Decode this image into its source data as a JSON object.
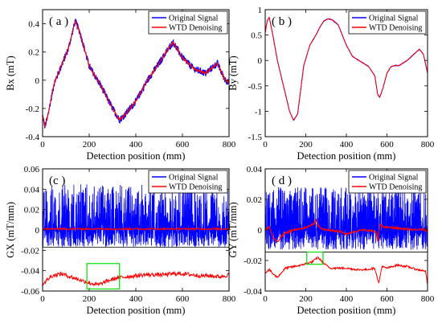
{
  "legend": {
    "series1": "Original Signal",
    "series2": "WTD Denoising"
  },
  "colors": {
    "original": "#0000ff",
    "denoised": "#ff0000",
    "highlight": "#00dd00"
  },
  "chart_data": [
    {
      "panel": "( a )",
      "type": "line",
      "xlabel": "Detection position (mm)",
      "ylabel": "Bx (mT)",
      "xlim": [
        0,
        800
      ],
      "ylim": [
        -0.4,
        0.5
      ],
      "xticks": [
        "0",
        "200",
        "400",
        "600",
        "800"
      ],
      "yticks": [
        "-0.4",
        "-0.2",
        "0",
        "0.2",
        "0.4"
      ],
      "legend_position": "top-right",
      "noise_amplitude": 0.05,
      "series": [
        {
          "name": "Original Signal",
          "x": [
            0,
            10,
            20,
            50,
            80,
            110,
            140,
            160,
            200,
            250,
            300,
            330,
            350,
            400,
            450,
            500,
            530,
            560,
            600,
            650,
            700,
            750,
            780,
            800
          ],
          "y": [
            -0.25,
            -0.33,
            -0.27,
            -0.02,
            0.1,
            0.22,
            0.42,
            0.34,
            0.1,
            -0.04,
            -0.2,
            -0.28,
            -0.25,
            -0.15,
            0.0,
            0.12,
            0.2,
            0.27,
            0.16,
            0.08,
            0.05,
            0.12,
            0.01,
            -0.02
          ]
        },
        {
          "name": "WTD Denoising",
          "x": [
            0,
            10,
            20,
            50,
            80,
            110,
            140,
            160,
            200,
            250,
            300,
            330,
            350,
            400,
            450,
            500,
            530,
            560,
            600,
            650,
            700,
            750,
            780,
            800
          ],
          "y": [
            -0.25,
            -0.33,
            -0.27,
            -0.02,
            0.1,
            0.22,
            0.42,
            0.34,
            0.1,
            -0.04,
            -0.2,
            -0.28,
            -0.25,
            -0.15,
            0.0,
            0.12,
            0.2,
            0.27,
            0.16,
            0.08,
            0.05,
            0.12,
            0.01,
            -0.02
          ]
        }
      ]
    },
    {
      "panel": "( b )",
      "type": "line",
      "xlabel": "Detection position (mm)",
      "ylabel": "By (mT)",
      "xlim": [
        0,
        800
      ],
      "ylim": [
        -1.5,
        1
      ],
      "xticks": [
        "0",
        "200",
        "400",
        "600",
        "800"
      ],
      "yticks": [
        "-1.5",
        "-1",
        "-0.5",
        "0",
        "0.5",
        "1"
      ],
      "legend_position": "top-right",
      "noise_amplitude": 0.01,
      "series": [
        {
          "name": "Original Signal",
          "x": [
            0,
            10,
            20,
            40,
            60,
            90,
            120,
            140,
            160,
            190,
            220,
            250,
            270,
            290,
            310,
            330,
            360,
            400,
            430,
            470,
            510,
            540,
            555,
            565,
            580,
            600,
            620,
            640,
            660,
            700,
            740,
            760,
            780,
            800
          ],
          "y": [
            0.55,
            0.78,
            0.85,
            0.45,
            0.0,
            -0.5,
            -1.0,
            -1.18,
            -1.05,
            -0.1,
            0.3,
            0.5,
            0.66,
            0.78,
            0.82,
            0.8,
            0.7,
            0.3,
            0.08,
            -0.02,
            -0.12,
            -0.3,
            -0.68,
            -0.72,
            -0.55,
            -0.25,
            -0.12,
            -0.1,
            -0.1,
            0.0,
            0.15,
            0.22,
            0.12,
            -0.25
          ]
        },
        {
          "name": "WTD Denoising",
          "x": [
            0,
            10,
            20,
            40,
            60,
            90,
            120,
            140,
            160,
            190,
            220,
            250,
            270,
            290,
            310,
            330,
            360,
            400,
            430,
            470,
            510,
            540,
            555,
            565,
            580,
            600,
            620,
            640,
            660,
            700,
            740,
            760,
            780,
            800
          ],
          "y": [
            0.55,
            0.78,
            0.85,
            0.45,
            0.0,
            -0.5,
            -1.0,
            -1.18,
            -1.05,
            -0.1,
            0.3,
            0.5,
            0.66,
            0.78,
            0.82,
            0.8,
            0.7,
            0.3,
            0.08,
            -0.02,
            -0.12,
            -0.3,
            -0.68,
            -0.72,
            -0.55,
            -0.25,
            -0.12,
            -0.1,
            -0.1,
            0.0,
            0.15,
            0.22,
            0.12,
            -0.25
          ]
        }
      ]
    },
    {
      "panel": "(c )",
      "type": "line",
      "xlabel": "Detection position (mm)",
      "ylabel": "GX (mT/mm)",
      "xlim": [
        0,
        800
      ],
      "ylim": [
        -0.06,
        0.06
      ],
      "xticks": [
        "0",
        "200",
        "400",
        "600",
        "800"
      ],
      "yticks": [
        "-0.06",
        "-0.04",
        "-0.02",
        "0",
        "0.02",
        "0.04",
        "0.06"
      ],
      "legend_position": "top-right",
      "upper_region_ylim": [
        -0.017,
        0.06
      ],
      "original_noise_range": [
        -0.017,
        0.045
      ],
      "denoised_offset": 0.001,
      "denoised_noise": 0.0015,
      "inset_line": {
        "x": [
          0,
          40,
          80,
          120,
          160,
          200,
          240,
          280,
          320,
          360,
          400,
          440,
          480,
          520,
          560,
          600,
          640,
          680,
          720,
          760,
          800
        ],
        "y": [
          -0.053,
          -0.045,
          -0.043,
          -0.046,
          -0.049,
          -0.052,
          -0.054,
          -0.05,
          -0.047,
          -0.046,
          -0.045,
          -0.044,
          -0.044,
          -0.044,
          -0.043,
          -0.043,
          -0.044,
          -0.045,
          -0.045,
          -0.046,
          -0.044
        ]
      },
      "highlight_box": {
        "x": [
          190,
          330
        ],
        "y": [
          -0.058,
          -0.033
        ]
      },
      "series": [
        {
          "name": "Original Signal"
        },
        {
          "name": "WTD Denoising"
        }
      ]
    },
    {
      "panel": "( d )",
      "type": "line",
      "xlabel": "Detection position (mm)",
      "ylabel": "GY (mT/mm)",
      "xlim": [
        0,
        800
      ],
      "ylim": [
        -0.04,
        0.04
      ],
      "xticks": [
        "0",
        "200",
        "400",
        "600",
        "800"
      ],
      "yticks": [
        "-0.04",
        "-0.02",
        "0",
        "0.02",
        "0.04"
      ],
      "legend_position": "top-right",
      "upper_region_ylim": [
        -0.0145,
        0.04
      ],
      "original_noise_range": [
        -0.013,
        0.028
      ],
      "denoised_line": {
        "x": [
          0,
          20,
          40,
          60,
          80,
          100,
          120,
          140,
          160,
          180,
          200,
          220,
          240,
          250,
          260,
          280,
          300,
          340,
          380,
          400,
          440,
          480,
          520,
          540,
          550,
          555,
          565,
          580,
          620,
          660,
          700,
          740,
          780,
          800
        ],
        "y": [
          0.0,
          0.002,
          -0.005,
          -0.008,
          -0.004,
          -0.002,
          -0.001,
          0.0,
          0.0005,
          0.001,
          0.0015,
          0.0025,
          0.004,
          0.007,
          0.003,
          0.0005,
          0.0,
          -0.0005,
          -0.001,
          -0.003,
          -0.001,
          0.0,
          -0.0005,
          -0.001,
          -0.003,
          -0.008,
          0.004,
          0.002,
          0.0015,
          0.001,
          0.0005,
          0.0,
          0.0005,
          -0.0005
        ]
      },
      "inset_line": {
        "x": [
          0,
          20,
          40,
          60,
          80,
          100,
          140,
          180,
          200,
          230,
          260,
          290,
          320,
          360,
          400,
          450,
          500,
          540,
          550,
          560,
          575,
          600,
          650,
          700,
          750,
          790,
          800
        ],
        "y": [
          -0.028,
          -0.026,
          -0.029,
          -0.031,
          -0.028,
          -0.025,
          -0.024,
          -0.023,
          -0.022,
          -0.021,
          -0.018,
          -0.022,
          -0.025,
          -0.025,
          -0.025,
          -0.026,
          -0.026,
          -0.025,
          -0.03,
          -0.035,
          -0.024,
          -0.025,
          -0.023,
          -0.024,
          -0.026,
          -0.027,
          -0.036
        ]
      },
      "highlight_box": {
        "x": [
          205,
          285
        ],
        "y": [
          -0.0225,
          -0.0145
        ]
      },
      "series": [
        {
          "name": "Original Signal"
        },
        {
          "name": "WTD Denoising"
        }
      ]
    }
  ]
}
